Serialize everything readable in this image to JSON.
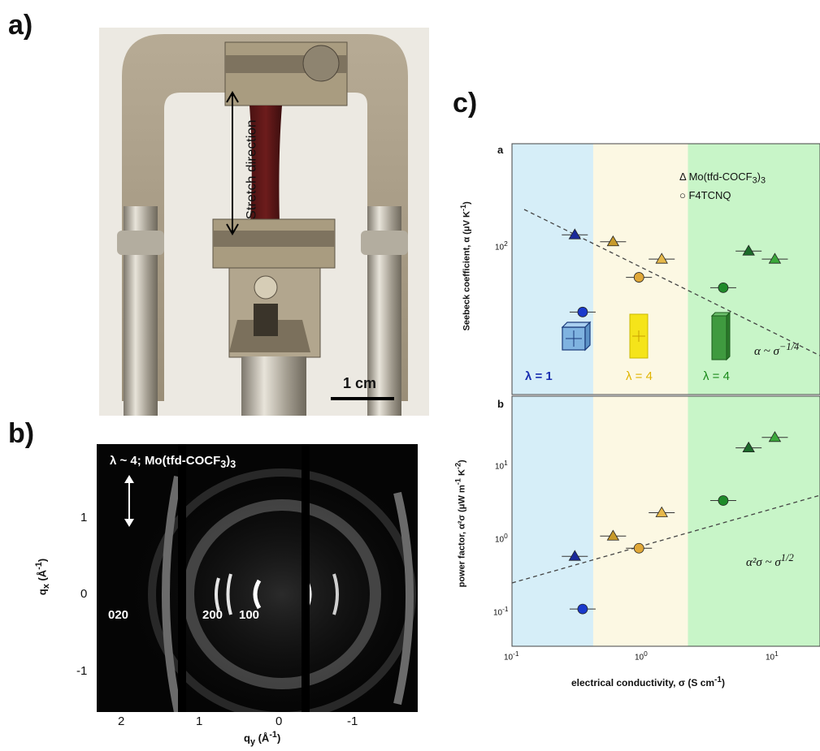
{
  "panels": {
    "a": "a)",
    "b": "b)",
    "c": "c)"
  },
  "photo": {
    "stretch_label": "Stretch direction",
    "scale_label": "1 cm"
  },
  "waxs": {
    "title": "λ ~ 4; Mo(tfd-COCF",
    "title_sub": "3",
    "title_close": ")",
    "sub_close": "3",
    "peaks": [
      "020",
      "200",
      "100"
    ],
    "qx_label": "q",
    "qx_sub": "x",
    "qx_unit": " (Å",
    "qx_unit_sup": "-1",
    "qx_unit_close": ")",
    "qy_label": "q",
    "qy_sub": "y",
    "qy_unit": " (Å",
    "qy_unit_sup": "-1",
    "qy_unit_close": ")",
    "qx_ticks": [
      "1",
      "0",
      "-1"
    ],
    "qy_ticks": [
      "2",
      "1",
      "0",
      "-1"
    ]
  },
  "chart_data": {
    "type": "scatter",
    "subpanels": [
      "a",
      "b"
    ],
    "legend": [
      "Δ  Mo(tfd-COCF",
      "○  F4TCNQ"
    ],
    "legend_sub": "3",
    "legend_sub_close": ")",
    "sub_final": "3",
    "xlabel": "electrical conductivity, σ (S cm",
    "xlabel_sup": "-1",
    "xlabel_close": ")",
    "ylabel_a": "Seebeck coefficient, α (μV K",
    "ylabel_a_sup": "-1",
    "ylabel_a_close": ")",
    "ylabel_b": "power factor, α²σ (μW m",
    "ylabel_b_mid": "-1",
    "ylabel_b_k": " K",
    "ylabel_b_sup": "-2",
    "ylabel_b_close": ")",
    "x_log": true,
    "xlim": [
      0.1,
      30
    ],
    "x_ticks": [
      "10",
      "10",
      "10"
    ],
    "x_ticks_exp": [
      "-1",
      "0",
      "1"
    ],
    "a_ylim": [
      30,
      300
    ],
    "a_log": true,
    "a_ytick": "10",
    "a_ytick_exp": "2",
    "b_ylim": [
      0.05,
      50
    ],
    "b_log": true,
    "b_yticks": [
      "10",
      "10",
      "10"
    ],
    "b_yticks_exp": [
      "-1",
      "0",
      "1"
    ],
    "regions": [
      {
        "label": "λ = 1",
        "x_range": [
          0.1,
          0.45
        ],
        "color": "#d6eef8",
        "label_color": "#1a2fb0"
      },
      {
        "label": "λ = 4",
        "x_range": [
          0.45,
          2.6
        ],
        "color": "#fcf8e3",
        "label_color": "#e0b400"
      },
      {
        "label": "λ = 4",
        "x_range": [
          2.6,
          30
        ],
        "color": "#c8f5c8",
        "label_color": "#1a8a1a"
      }
    ],
    "fit_a": "α ~ σ",
    "fit_a_exp": "−1/4",
    "fit_b": "α²σ ~ σ",
    "fit_b_exp": "1/2",
    "seebeck_series": [
      {
        "name": "Mo(tfd-COCF3)3",
        "marker": "triangle",
        "points": [
          {
            "x": 0.32,
            "y": 130,
            "color": "#1a2a9a"
          },
          {
            "x": 0.65,
            "y": 122,
            "color": "#c79a2a"
          },
          {
            "x": 1.6,
            "y": 104,
            "color": "#e6b84a"
          },
          {
            "x": 8.0,
            "y": 112,
            "color": "#1c6a2a"
          },
          {
            "x": 13.0,
            "y": 104,
            "color": "#3aa83a"
          }
        ]
      },
      {
        "name": "F4TCNQ",
        "marker": "circle",
        "points": [
          {
            "x": 0.37,
            "y": 64,
            "color": "#1a3acc"
          },
          {
            "x": 1.05,
            "y": 88,
            "color": "#e0a838"
          },
          {
            "x": 5.0,
            "y": 80,
            "color": "#1f8a2a"
          }
        ]
      }
    ],
    "pf_series": [
      {
        "name": "Mo(tfd-COCF3)3",
        "marker": "triangle",
        "points": [
          {
            "x": 0.32,
            "y": 0.6,
            "color": "#1a2a9a"
          },
          {
            "x": 0.65,
            "y": 1.05,
            "color": "#c79a2a"
          },
          {
            "x": 1.6,
            "y": 2.0,
            "color": "#e6b84a"
          },
          {
            "x": 8.0,
            "y": 12,
            "color": "#1c6a2a"
          },
          {
            "x": 13.0,
            "y": 16,
            "color": "#3aa83a"
          }
        ]
      },
      {
        "name": "F4TCNQ",
        "marker": "circle",
        "points": [
          {
            "x": 0.37,
            "y": 0.14,
            "color": "#1a3acc"
          },
          {
            "x": 1.05,
            "y": 0.75,
            "color": "#e0a838"
          },
          {
            "x": 5.0,
            "y": 2.8,
            "color": "#1f8a2a"
          }
        ]
      }
    ]
  }
}
